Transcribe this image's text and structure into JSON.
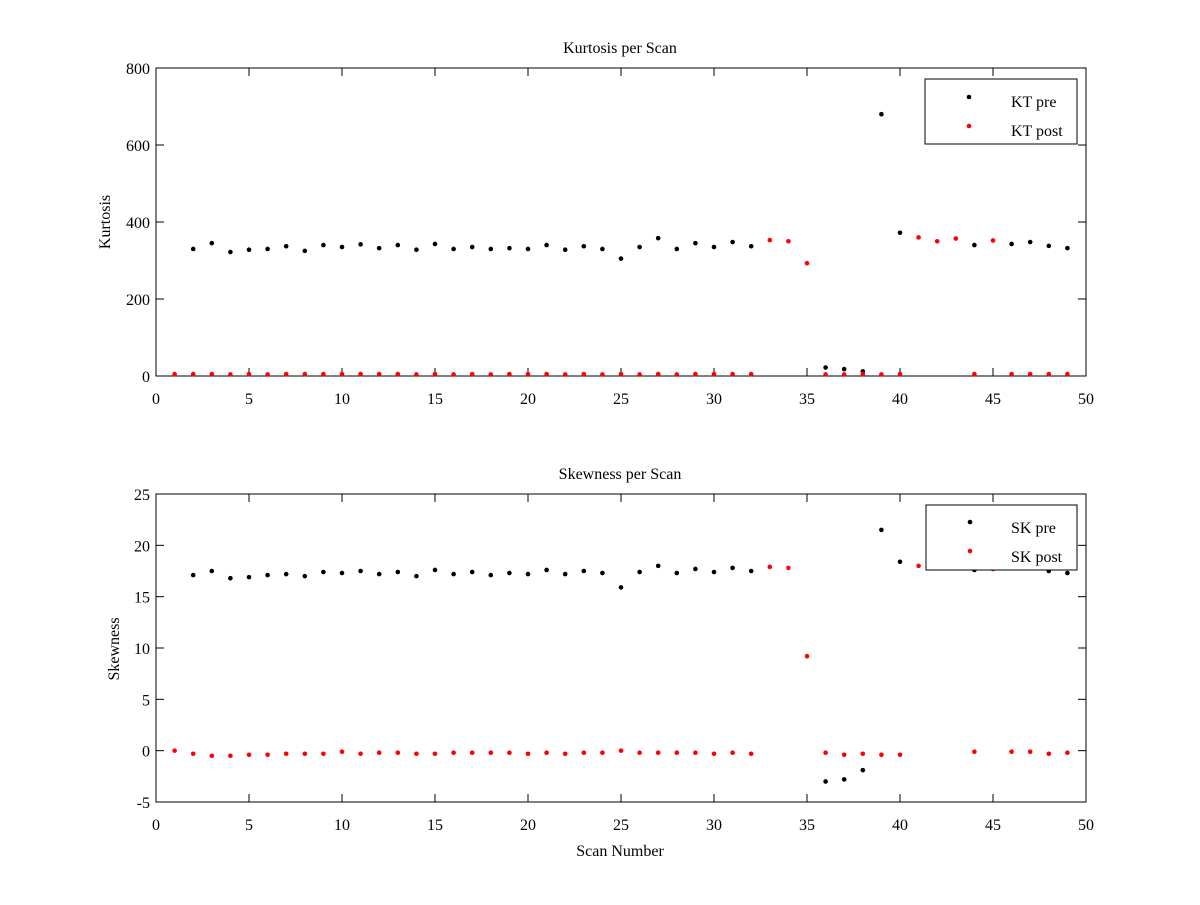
{
  "chart_data": [
    {
      "type": "scatter",
      "title": "Kurtosis per Scan",
      "xlabel": "",
      "ylabel": "Kurtosis",
      "xlim": [
        0,
        50
      ],
      "ylim": [
        0,
        800
      ],
      "xticks": [
        0,
        5,
        10,
        15,
        20,
        25,
        30,
        35,
        40,
        45,
        50
      ],
      "yticks": [
        0,
        200,
        400,
        600,
        800
      ],
      "legend_position": "top-right",
      "grid": false,
      "series": [
        {
          "name": "KT pre",
          "color": "#000000",
          "points": [
            [
              2,
              330
            ],
            [
              3,
              345
            ],
            [
              4,
              322
            ],
            [
              5,
              328
            ],
            [
              6,
              330
            ],
            [
              7,
              337
            ],
            [
              8,
              325
            ],
            [
              9,
              340
            ],
            [
              10,
              335
            ],
            [
              11,
              342
            ],
            [
              12,
              332
            ],
            [
              13,
              340
            ],
            [
              14,
              328
            ],
            [
              15,
              343
            ],
            [
              16,
              330
            ],
            [
              17,
              335
            ],
            [
              18,
              330
            ],
            [
              19,
              332
            ],
            [
              20,
              330
            ],
            [
              21,
              340
            ],
            [
              22,
              328
            ],
            [
              23,
              337
            ],
            [
              24,
              330
            ],
            [
              25,
              305
            ],
            [
              26,
              335
            ],
            [
              27,
              358
            ],
            [
              28,
              330
            ],
            [
              29,
              345
            ],
            [
              30,
              335
            ],
            [
              31,
              348
            ],
            [
              32,
              337
            ],
            [
              36,
              22
            ],
            [
              37,
              18
            ],
            [
              38,
              12
            ],
            [
              39,
              680
            ],
            [
              40,
              372
            ],
            [
              44,
              340
            ],
            [
              46,
              343
            ],
            [
              47,
              348
            ],
            [
              48,
              338
            ],
            [
              49,
              332
            ]
          ]
        },
        {
          "name": "KT post",
          "color": "#ff0000",
          "points": [
            [
              1,
              5
            ],
            [
              2,
              5
            ],
            [
              3,
              5
            ],
            [
              4,
              4
            ],
            [
              5,
              5
            ],
            [
              6,
              4
            ],
            [
              7,
              5
            ],
            [
              8,
              5
            ],
            [
              9,
              5
            ],
            [
              10,
              5
            ],
            [
              11,
              5
            ],
            [
              12,
              5
            ],
            [
              13,
              5
            ],
            [
              14,
              4
            ],
            [
              15,
              5
            ],
            [
              16,
              4
            ],
            [
              17,
              5
            ],
            [
              18,
              4
            ],
            [
              19,
              5
            ],
            [
              20,
              5
            ],
            [
              21,
              5
            ],
            [
              22,
              4
            ],
            [
              23,
              5
            ],
            [
              24,
              4
            ],
            [
              25,
              5
            ],
            [
              26,
              4
            ],
            [
              27,
              5
            ],
            [
              28,
              4
            ],
            [
              29,
              5
            ],
            [
              30,
              5
            ],
            [
              31,
              5
            ],
            [
              32,
              5
            ],
            [
              33,
              353
            ],
            [
              34,
              350
            ],
            [
              35,
              293
            ],
            [
              36,
              4
            ],
            [
              37,
              4
            ],
            [
              38,
              5
            ],
            [
              39,
              4
            ],
            [
              40,
              5
            ],
            [
              41,
              360
            ],
            [
              42,
              350
            ],
            [
              43,
              357
            ],
            [
              44,
              5
            ],
            [
              45,
              352
            ],
            [
              46,
              5
            ],
            [
              47,
              5
            ],
            [
              48,
              5
            ],
            [
              49,
              5
            ]
          ]
        }
      ]
    },
    {
      "type": "scatter",
      "title": "Skewness per Scan",
      "xlabel": "Scan Number",
      "ylabel": "Skewness",
      "xlim": [
        0,
        50
      ],
      "ylim": [
        -5,
        25
      ],
      "xticks": [
        0,
        5,
        10,
        15,
        20,
        25,
        30,
        35,
        40,
        45,
        50
      ],
      "yticks": [
        -5,
        0,
        5,
        10,
        15,
        20,
        25
      ],
      "legend_position": "top-right",
      "grid": false,
      "series": [
        {
          "name": "SK pre",
          "color": "#000000",
          "points": [
            [
              2,
              17.1
            ],
            [
              3,
              17.5
            ],
            [
              4,
              16.8
            ],
            [
              5,
              16.9
            ],
            [
              6,
              17.1
            ],
            [
              7,
              17.2
            ],
            [
              8,
              17.0
            ],
            [
              9,
              17.4
            ],
            [
              10,
              17.3
            ],
            [
              11,
              17.5
            ],
            [
              12,
              17.2
            ],
            [
              13,
              17.4
            ],
            [
              14,
              17.0
            ],
            [
              15,
              17.6
            ],
            [
              16,
              17.2
            ],
            [
              17,
              17.4
            ],
            [
              18,
              17.1
            ],
            [
              19,
              17.3
            ],
            [
              20,
              17.2
            ],
            [
              21,
              17.6
            ],
            [
              22,
              17.2
            ],
            [
              23,
              17.5
            ],
            [
              24,
              17.3
            ],
            [
              25,
              15.9
            ],
            [
              26,
              17.4
            ],
            [
              27,
              18.0
            ],
            [
              28,
              17.3
            ],
            [
              29,
              17.7
            ],
            [
              30,
              17.4
            ],
            [
              31,
              17.8
            ],
            [
              32,
              17.5
            ],
            [
              36,
              -3.0
            ],
            [
              37,
              -2.8
            ],
            [
              38,
              -1.9
            ],
            [
              39,
              21.5
            ],
            [
              40,
              18.4
            ],
            [
              44,
              17.6
            ],
            [
              46,
              17.8
            ],
            [
              47,
              17.9
            ],
            [
              48,
              17.5
            ],
            [
              49,
              17.3
            ]
          ]
        },
        {
          "name": "SK post",
          "color": "#ff0000",
          "points": [
            [
              1,
              0.0
            ],
            [
              2,
              -0.3
            ],
            [
              3,
              -0.5
            ],
            [
              4,
              -0.5
            ],
            [
              5,
              -0.4
            ],
            [
              6,
              -0.4
            ],
            [
              7,
              -0.3
            ],
            [
              8,
              -0.3
            ],
            [
              9,
              -0.3
            ],
            [
              10,
              -0.1
            ],
            [
              11,
              -0.3
            ],
            [
              12,
              -0.2
            ],
            [
              13,
              -0.2
            ],
            [
              14,
              -0.3
            ],
            [
              15,
              -0.3
            ],
            [
              16,
              -0.2
            ],
            [
              17,
              -0.2
            ],
            [
              18,
              -0.2
            ],
            [
              19,
              -0.2
            ],
            [
              20,
              -0.3
            ],
            [
              21,
              -0.2
            ],
            [
              22,
              -0.3
            ],
            [
              23,
              -0.2
            ],
            [
              24,
              -0.2
            ],
            [
              25,
              0.0
            ],
            [
              26,
              -0.2
            ],
            [
              27,
              -0.2
            ],
            [
              28,
              -0.2
            ],
            [
              29,
              -0.2
            ],
            [
              30,
              -0.3
            ],
            [
              31,
              -0.2
            ],
            [
              32,
              -0.3
            ],
            [
              33,
              17.9
            ],
            [
              34,
              17.8
            ],
            [
              35,
              9.2
            ],
            [
              36,
              -0.2
            ],
            [
              37,
              -0.4
            ],
            [
              38,
              -0.3
            ],
            [
              39,
              -0.4
            ],
            [
              40,
              -0.4
            ],
            [
              41,
              18.0
            ],
            [
              42,
              17.8
            ],
            [
              43,
              17.9
            ],
            [
              44,
              -0.1
            ],
            [
              45,
              17.7
            ],
            [
              46,
              -0.1
            ],
            [
              47,
              -0.1
            ],
            [
              48,
              -0.3
            ],
            [
              49,
              -0.2
            ]
          ]
        }
      ]
    }
  ]
}
